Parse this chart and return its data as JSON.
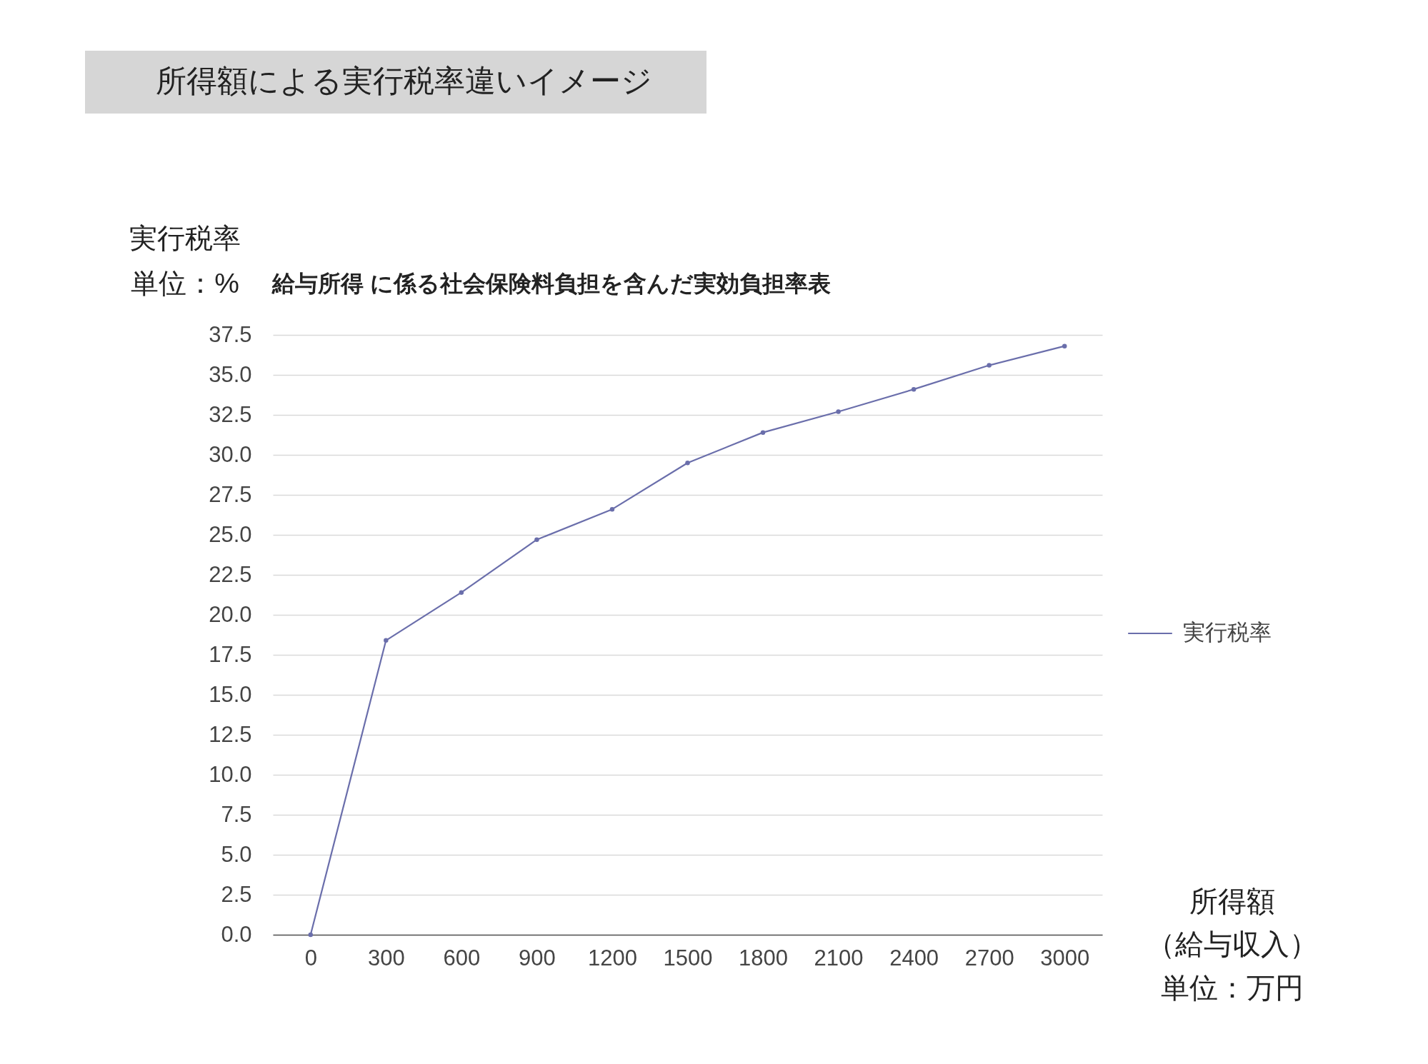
{
  "chart_data": {
    "type": "line",
    "title": "所得額による実行税率違いイメージ",
    "subtitle": "給与所得 に係る社会保険料負担を含んだ実効負担率表",
    "ylabel": "実行税率",
    "xlabel": "所得額",
    "annotations": [
      "単位：%",
      "（給与収入）",
      "単位：万円"
    ],
    "categories": [
      "0",
      "300",
      "600",
      "900",
      "1200",
      "1500",
      "1800",
      "2100",
      "2400",
      "2700",
      "3000"
    ],
    "series": [
      {
        "name": "実行税率",
        "color": "#6a6eab",
        "values": [
          0,
          18.4,
          21.4,
          24.7,
          26.6,
          29.5,
          31.4,
          32.7,
          34.1,
          35.6,
          36.8
        ]
      }
    ],
    "ylim": [
      0,
      37.5
    ],
    "yticks": [
      {
        "value": 0,
        "label": "0.0"
      },
      2.5,
      {
        "value": 5,
        "label": "5.0"
      },
      7.5,
      {
        "value": 10,
        "label": "10.0"
      },
      12.5,
      {
        "value": 15,
        "label": "15.0"
      },
      17.5,
      {
        "value": 20,
        "label": "20.0"
      },
      22.5,
      {
        "value": 25,
        "label": "25.0"
      },
      27.5,
      {
        "value": 30,
        "label": "30.0"
      },
      32.5,
      {
        "value": 35,
        "label": "35.0"
      },
      37.5
    ],
    "grid": "y",
    "legend": "right",
    "marker": "circle",
    "line_style": "solid"
  }
}
